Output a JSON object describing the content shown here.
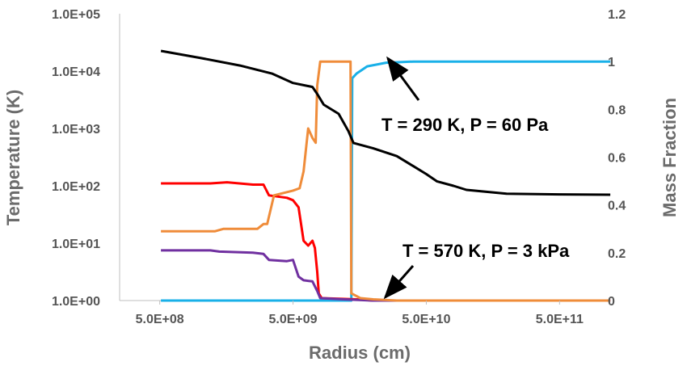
{
  "chart_data": {
    "type": "line",
    "title": "",
    "xlabel": "Radius (cm)",
    "ylabel_left": "Temperature (K)",
    "ylabel_right": "Mass Fraction",
    "x_scale": "log",
    "y_left_scale": "log",
    "xlim": [
      250000000.0,
      1000000000000.0
    ],
    "ylim_left": [
      1,
      100000
    ],
    "ylim_right": [
      0,
      1.2
    ],
    "x_ticks": [
      500000000.0,
      5000000000.0,
      50000000000.0,
      500000000000.0
    ],
    "x_tick_labels": [
      "5.0E+08",
      "5.0E+09",
      "5.0E+10",
      "5.0E+11"
    ],
    "y_left_ticks": [
      1,
      10,
      100,
      1000,
      10000,
      100000
    ],
    "y_left_tick_labels": [
      "1.0E+00",
      "1.0E+01",
      "1.0E+02",
      "1.0E+03",
      "1.0E+04",
      "1.0E+05"
    ],
    "y_right_ticks": [
      0,
      0.2,
      0.4,
      0.6,
      0.8,
      1,
      1.2
    ],
    "y_right_tick_labels": [
      "0",
      "0.2",
      "0.4",
      "0.6",
      "0.8",
      "1",
      "1.2"
    ],
    "grid": false,
    "legend": "none",
    "annotations": [
      {
        "text": "T = 290 K, P = 60 Pa",
        "arrow_to": [
          23000000000.0,
          1.0
        ],
        "axis": "right"
      },
      {
        "text": "T = 570 K, P = 3 kPa",
        "arrow_to": [
          22000000000.0,
          0.0
        ],
        "axis": "right"
      }
    ],
    "series": [
      {
        "color": "#000000",
        "axis": "left",
        "points": [
          [
            510000000.0,
            22500
          ],
          [
            1000000000.0,
            17000
          ],
          [
            2000000000.0,
            12500
          ],
          [
            3500000000.0,
            9000
          ],
          [
            5000000000.0,
            6200
          ],
          [
            7000000000.0,
            5300
          ],
          [
            7600000000.0,
            4000
          ],
          [
            8500000000.0,
            2600
          ],
          [
            11000000000.0,
            1800
          ],
          [
            13000000000.0,
            900
          ],
          [
            14200000000.0,
            560
          ],
          [
            20000000000.0,
            450
          ],
          [
            30000000000.0,
            330
          ],
          [
            40000000000.0,
            220
          ],
          [
            50000000000.0,
            160
          ],
          [
            60000000000.0,
            120
          ],
          [
            80000000000.0,
            100
          ],
          [
            100000000000.0,
            85
          ],
          [
            200000000000.0,
            73
          ],
          [
            500000000000.0,
            71
          ],
          [
            1200000000000.0,
            70
          ]
        ]
      },
      {
        "color": "#ff0000",
        "axis": "right",
        "points": [
          [
            510000000.0,
            0.49
          ],
          [
            1200000000.0,
            0.49
          ],
          [
            1600000000.0,
            0.495
          ],
          [
            2500000000.0,
            0.485
          ],
          [
            3000000000.0,
            0.485
          ],
          [
            3300000000.0,
            0.44
          ],
          [
            4500000000.0,
            0.43
          ],
          [
            5000000000.0,
            0.42
          ],
          [
            5500000000.0,
            0.39
          ],
          [
            6000000000.0,
            0.25
          ],
          [
            6500000000.0,
            0.23
          ],
          [
            7000000000.0,
            0.25
          ],
          [
            7300000000.0,
            0.22
          ],
          [
            7600000000.0,
            0.12
          ],
          [
            7800000000.0,
            0.03
          ],
          [
            8200000000.0,
            0.01
          ],
          [
            15000000000.0,
            0.005
          ],
          [
            20000000000.0,
            0.0
          ],
          [
            1200000000000.0,
            0.0
          ]
        ]
      },
      {
        "color": "#ef8c3a",
        "axis": "right",
        "points": [
          [
            510000000.0,
            0.29
          ],
          [
            1300000000.0,
            0.29
          ],
          [
            1500000000.0,
            0.3
          ],
          [
            2700000000.0,
            0.3
          ],
          [
            3000000000.0,
            0.32
          ],
          [
            3200000000.0,
            0.32
          ],
          [
            3600000000.0,
            0.44
          ],
          [
            5000000000.0,
            0.46
          ],
          [
            5600000000.0,
            0.47
          ],
          [
            6000000000.0,
            0.54
          ],
          [
            6500000000.0,
            0.72
          ],
          [
            7000000000.0,
            0.68
          ],
          [
            7400000000.0,
            0.66
          ],
          [
            7600000000.0,
            0.9
          ],
          [
            8000000000.0,
            1.0
          ],
          [
            13500000000.0,
            1.0
          ],
          [
            13700000000.0,
            0.03
          ],
          [
            16000000000.0,
            0.01
          ],
          [
            20000000000.0,
            0.005
          ],
          [
            30000000000.0,
            0.0
          ],
          [
            1200000000000.0,
            0.0
          ]
        ]
      },
      {
        "color": "#7030a0",
        "axis": "right",
        "points": [
          [
            510000000.0,
            0.21
          ],
          [
            1200000000.0,
            0.21
          ],
          [
            1400000000.0,
            0.205
          ],
          [
            2500000000.0,
            0.2
          ],
          [
            3000000000.0,
            0.195
          ],
          [
            3300000000.0,
            0.17
          ],
          [
            4500000000.0,
            0.165
          ],
          [
            5000000000.0,
            0.17
          ],
          [
            5500000000.0,
            0.1
          ],
          [
            6000000000.0,
            0.085
          ],
          [
            7000000000.0,
            0.08
          ],
          [
            7600000000.0,
            0.04
          ],
          [
            8000000000.0,
            0.01
          ],
          [
            12000000000.0,
            0.005
          ],
          [
            20000000000.0,
            0.0
          ],
          [
            1200000000000.0,
            0.0
          ]
        ]
      },
      {
        "color": "#19b0e8",
        "axis": "right",
        "points": [
          [
            510000000.0,
            0.0
          ],
          [
            13700000000.0,
            0.0
          ],
          [
            13900000000.0,
            0.93
          ],
          [
            15000000000.0,
            0.95
          ],
          [
            18000000000.0,
            0.98
          ],
          [
            25000000000.0,
            0.995
          ],
          [
            40000000000.0,
            1.0
          ],
          [
            1200000000000.0,
            1.0
          ]
        ]
      }
    ]
  }
}
